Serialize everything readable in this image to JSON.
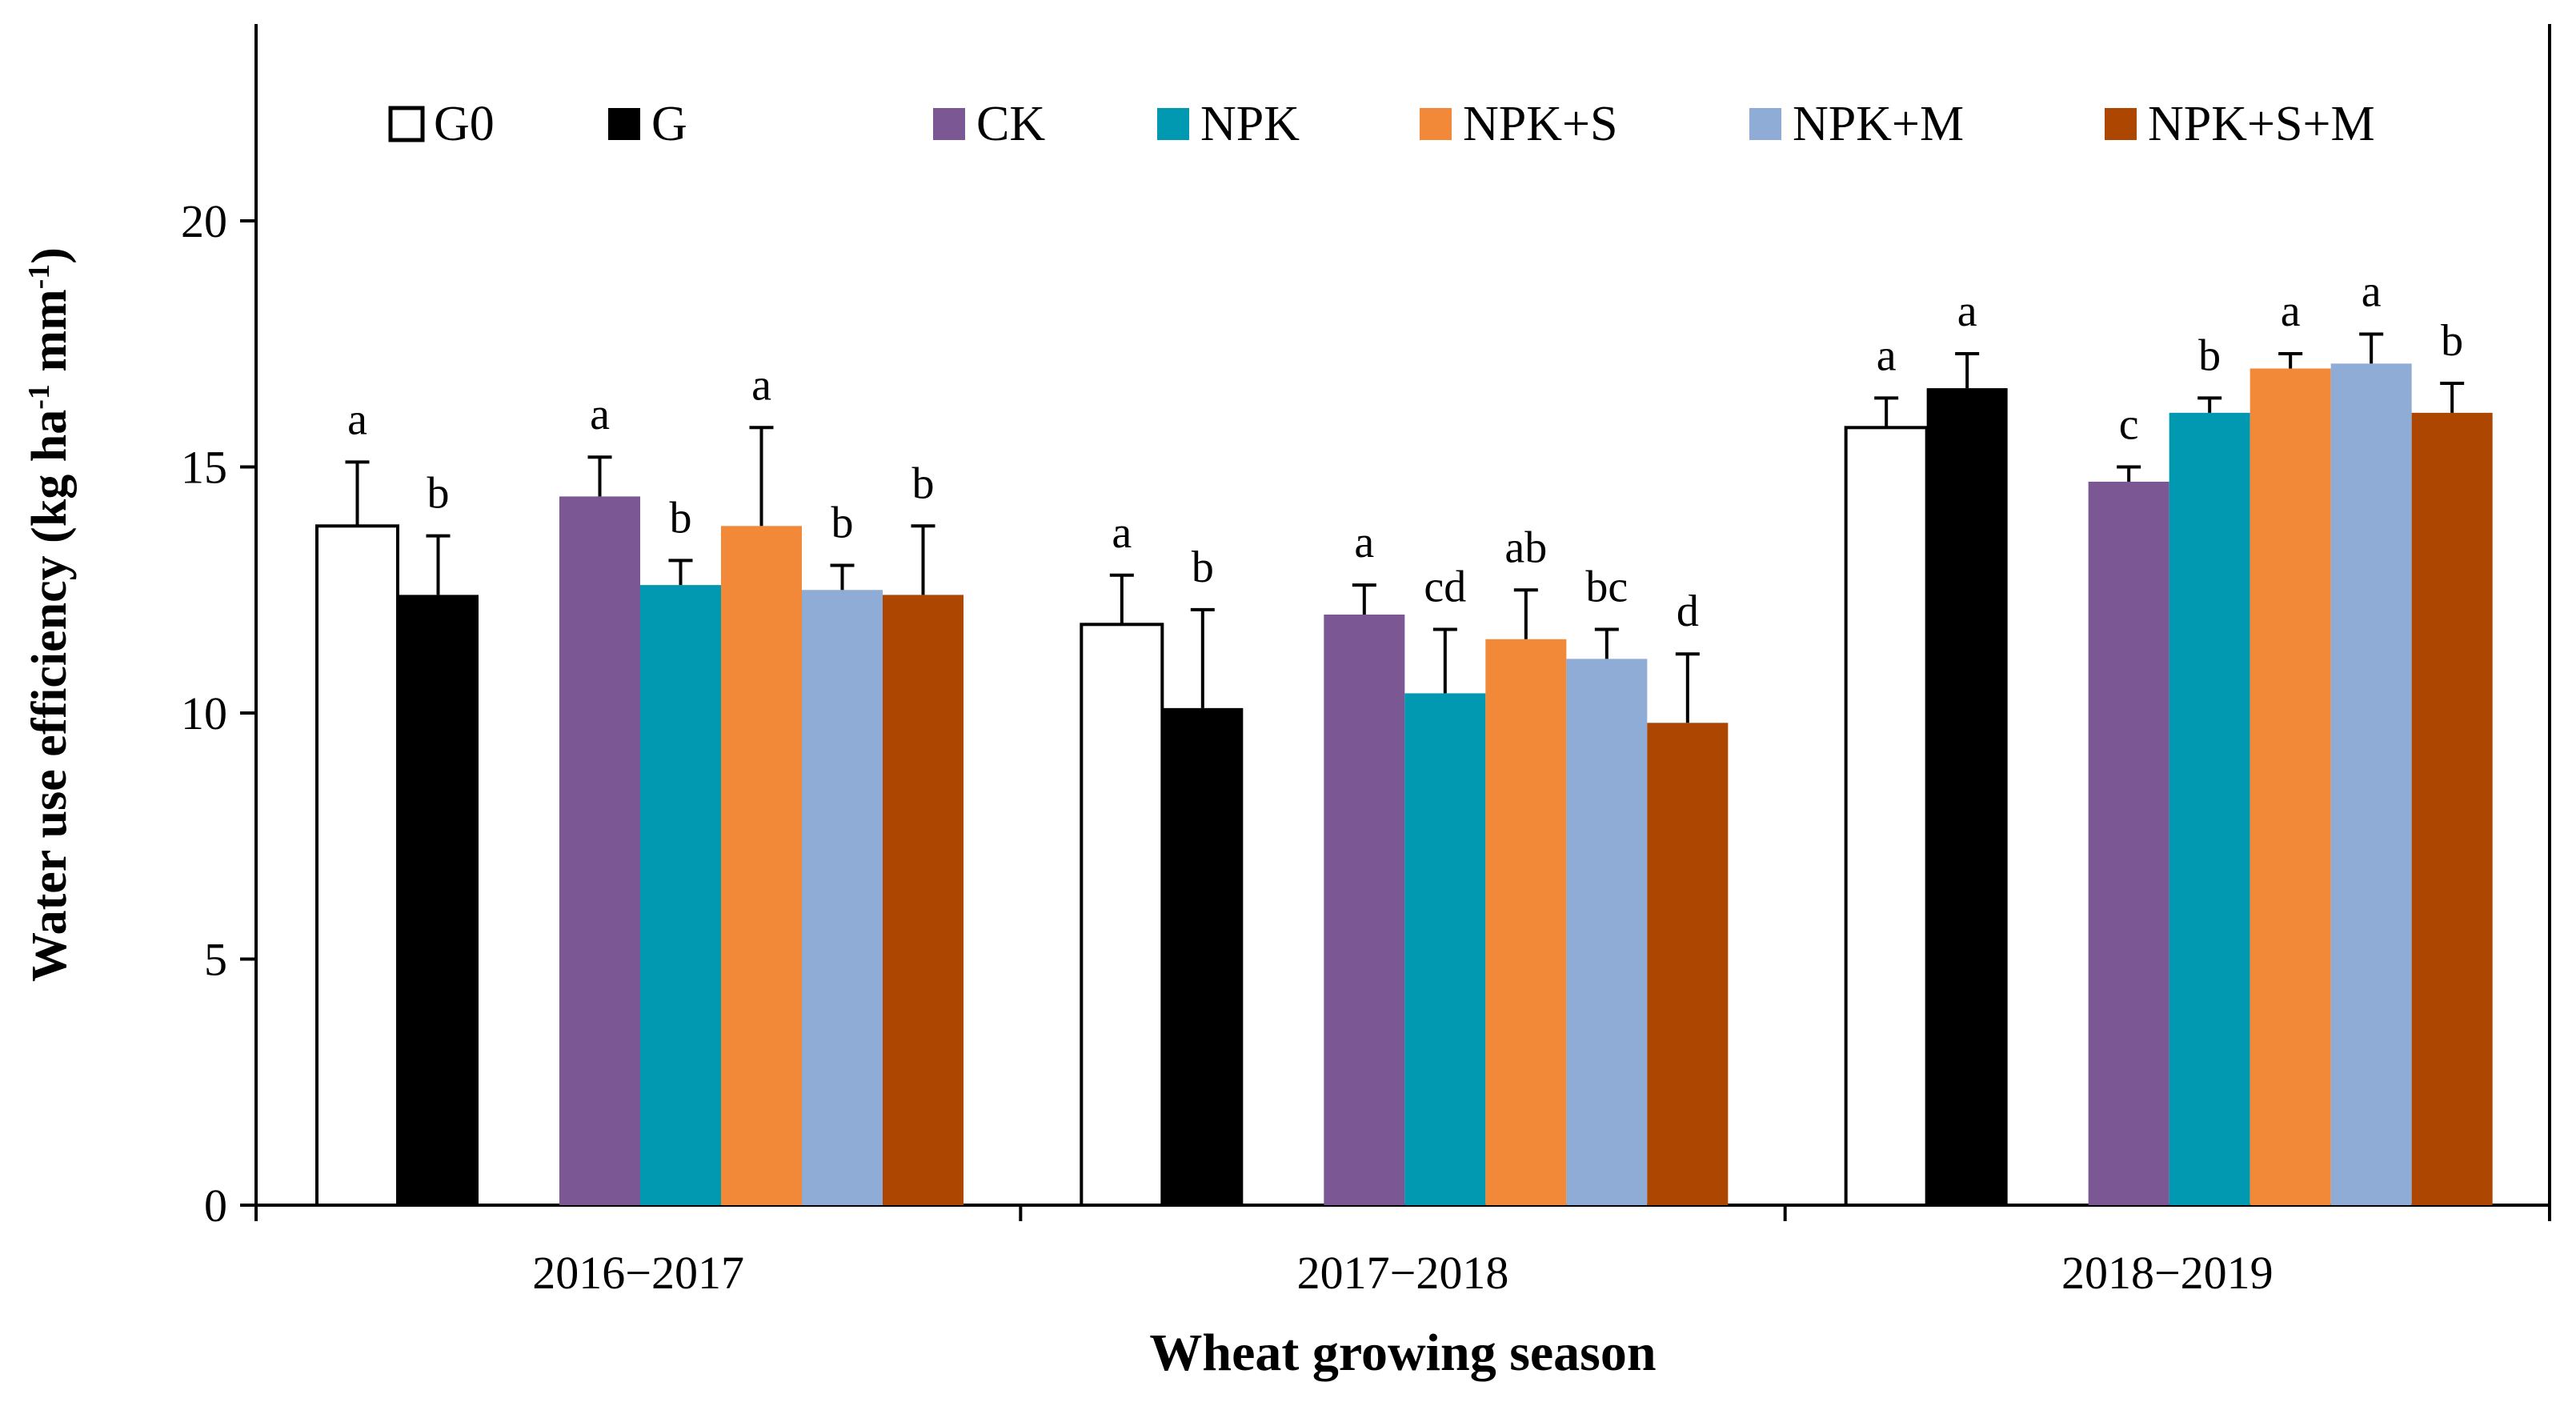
{
  "chart_data": {
    "type": "bar",
    "title": "",
    "xlabel": "Wheat growing season",
    "ylabel": "Water use efficiency (kg ha-1 mm-1)",
    "ylabel_parts": {
      "main": "Water use efficiency (kg ha",
      "sup1": "-1",
      "mid": " mm",
      "sup2": "-1",
      "end": ")"
    },
    "ylim": [
      0,
      24
    ],
    "yticks": [
      "0",
      "5",
      "10",
      "15",
      "20"
    ],
    "grid": false,
    "legend_position": "top",
    "categories": [
      "2016−2017",
      "2017−2018",
      "2018−2019"
    ],
    "series": [
      {
        "name": "G0",
        "color": "#ffffff",
        "outline": "#000000",
        "values": [
          13.8,
          11.8,
          15.8
        ],
        "errors": [
          1.3,
          1.0,
          0.6
        ],
        "labels": [
          "a",
          "a",
          "a"
        ]
      },
      {
        "name": "G",
        "color": "#000000",
        "outline": "#000000",
        "values": [
          12.4,
          10.1,
          16.6
        ],
        "errors": [
          1.2,
          2.0,
          0.7
        ],
        "labels": [
          "b",
          "b",
          "a"
        ]
      },
      {
        "name": "CK",
        "color": "#7b5793",
        "values": [
          14.4,
          12.0,
          14.7
        ],
        "errors": [
          0.8,
          0.6,
          0.3
        ],
        "labels": [
          "a",
          "a",
          "c"
        ]
      },
      {
        "name": "NPK",
        "color": "#0099b1",
        "values": [
          12.6,
          10.4,
          16.1
        ],
        "errors": [
          0.5,
          1.3,
          0.3
        ],
        "labels": [
          "b",
          "cd",
          "b"
        ]
      },
      {
        "name": "NPK+S",
        "color": "#f28938",
        "values": [
          13.8,
          11.5,
          17.0
        ],
        "errors": [
          2.0,
          1.0,
          0.3
        ],
        "labels": [
          "a",
          "ab",
          "a"
        ]
      },
      {
        "name": "NPK+M",
        "color": "#8eacd6",
        "values": [
          12.5,
          11.1,
          17.1
        ],
        "errors": [
          0.5,
          0.6,
          0.6
        ],
        "labels": [
          "b",
          "bc",
          "a"
        ]
      },
      {
        "name": "NPK+S+M",
        "color": "#ac4601",
        "values": [
          12.4,
          9.8,
          16.1
        ],
        "errors": [
          1.4,
          1.4,
          0.6
        ],
        "labels": [
          "b",
          "d",
          "b"
        ]
      }
    ]
  }
}
